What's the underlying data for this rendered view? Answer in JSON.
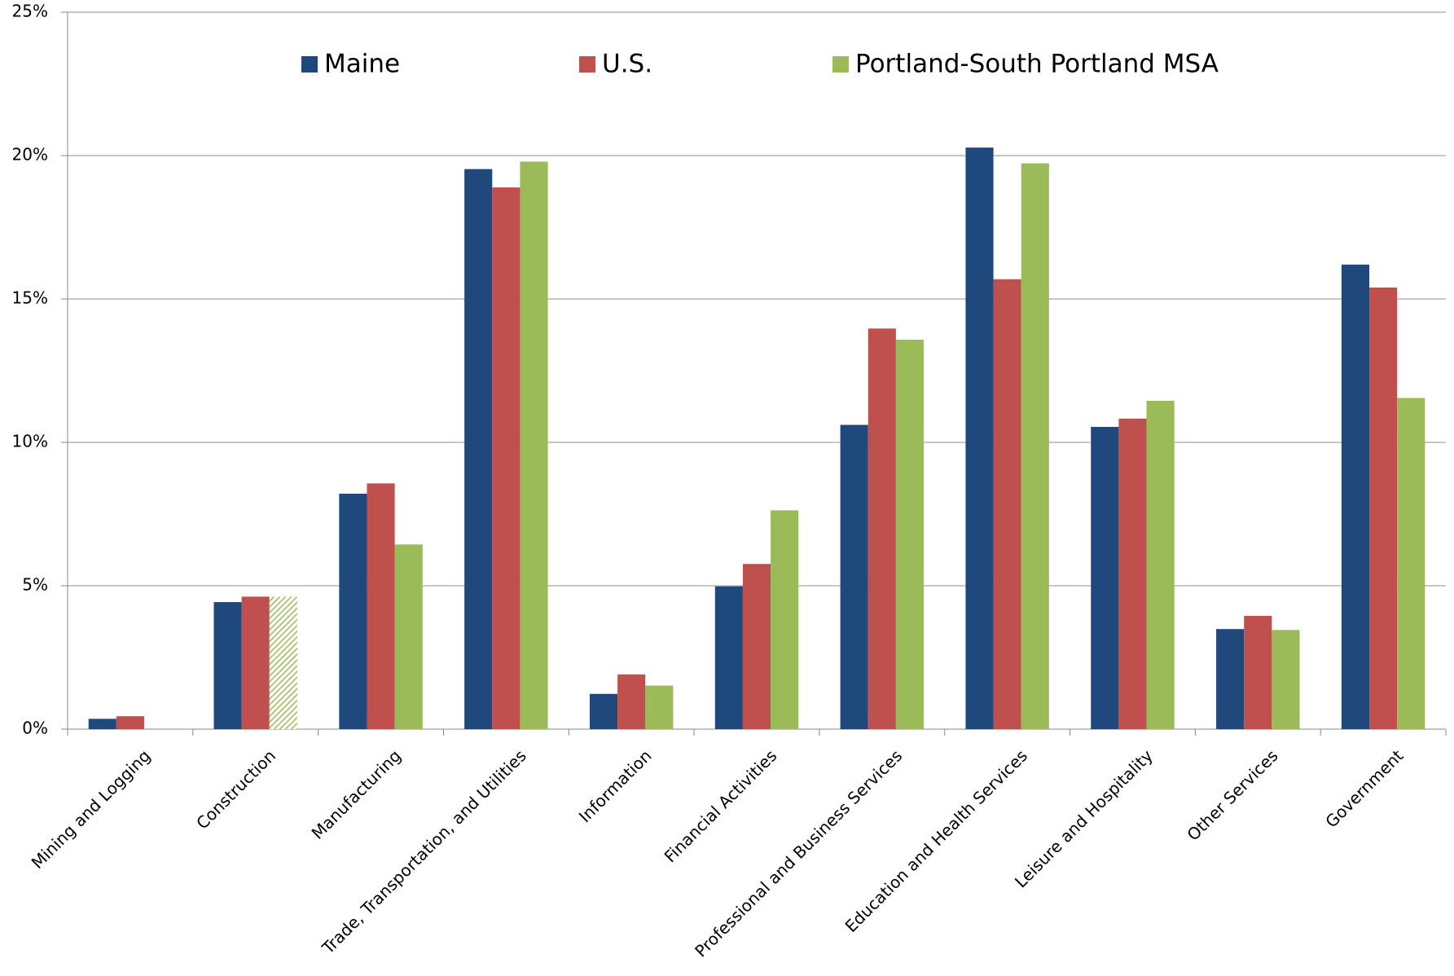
{
  "chart_data": {
    "type": "bar",
    "categories": [
      "Mining and Logging",
      "Construction",
      "Manufacturing",
      "Trade, Transportation, and Utilities",
      "Information",
      "Financial Activities",
      "Professional and Business Services",
      "Education and Health Services",
      "Leisure and Hospitality",
      "Other Services",
      "Government"
    ],
    "series": [
      {
        "name": "Maine",
        "color": "#1f497d",
        "values": [
          0.36,
          4.43,
          8.21,
          19.53,
          1.23,
          4.98,
          10.61,
          20.28,
          10.54,
          3.49,
          16.2
        ]
      },
      {
        "name": "U.S.",
        "color": "#c0504d",
        "values": [
          0.45,
          4.62,
          8.57,
          18.89,
          1.91,
          5.76,
          13.97,
          15.69,
          10.83,
          3.95,
          15.4
        ]
      },
      {
        "name": "Portland-South Portland MSA",
        "color": "#9bbb59",
        "values": [
          null,
          4.62,
          6.44,
          19.79,
          1.52,
          7.63,
          13.58,
          19.73,
          11.45,
          3.46,
          11.55
        ],
        "hatched": [
          1
        ]
      }
    ],
    "ylim": [
      0,
      25
    ],
    "yticks": [
      {
        "value": 0,
        "label": "0%"
      },
      {
        "value": 5,
        "label": "5%"
      },
      {
        "value": 10,
        "label": "10%"
      },
      {
        "value": 15,
        "label": "15%"
      },
      {
        "value": 20,
        "label": "20%"
      },
      {
        "value": 25,
        "label": "25%"
      }
    ],
    "grid": true,
    "legend": "top"
  }
}
